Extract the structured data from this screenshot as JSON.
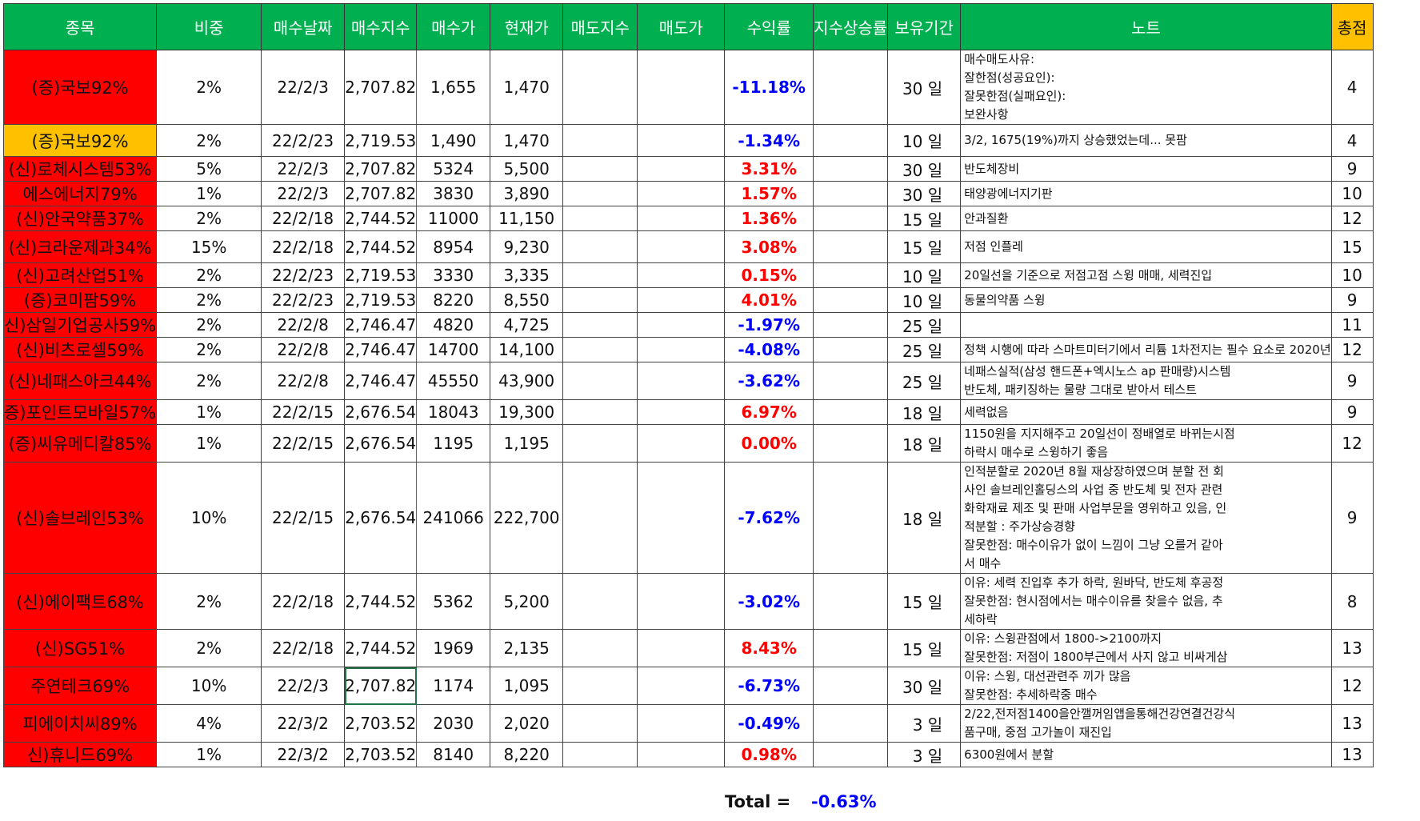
{
  "headers": {
    "name": "종목",
    "weight": "비중",
    "buy_date": "매수날짜",
    "buy_index": "매수지수",
    "buy_price": "매수가",
    "current_price": "현재가",
    "sell_index": "매도지수",
    "sell_price": "매도가",
    "return": "수익률",
    "index_rise": "지수상승률",
    "holding": "보유기간",
    "note": "노트",
    "score": "총점"
  },
  "rows": [
    {
      "name": "(증)국보92%",
      "weight": "2%",
      "buy_date": "22/2/3",
      "buy_index": "2,707.82",
      "buy_price": "1,655",
      "current_price": "1,470",
      "return": "-11.18%",
      "holding": "30 일",
      "note": [
        "매수매도사유:",
        "잘한점(성공요인):",
        "잘못한점(실패요인):",
        "보완사항"
      ],
      "score": "4"
    },
    {
      "name": "(증)국보92%",
      "weight": "2%",
      "buy_date": "22/2/23",
      "buy_index": "2,719.53",
      "buy_price": "1,490",
      "current_price": "1,470",
      "return": "-1.34%",
      "holding": "10 일",
      "note": [
        "3/2, 1675(19%)까지 상승했었는데... 못팜"
      ],
      "score": "4"
    },
    {
      "name": "(신)로체시스템53%",
      "weight": "5%",
      "buy_date": "22/2/3",
      "buy_index": "2,707.82",
      "buy_price": "5324",
      "current_price": "5,500",
      "return": "3.31%",
      "holding": "30 일",
      "note": [
        "반도체장비"
      ],
      "score": "9"
    },
    {
      "name": "에스에너지79%",
      "weight": "1%",
      "buy_date": "22/2/3",
      "buy_index": "2,707.82",
      "buy_price": "3830",
      "current_price": "3,890",
      "return": "1.57%",
      "holding": "30 일",
      "note": [
        "태양광에너지기판"
      ],
      "score": "10"
    },
    {
      "name": "(신)안국약품37%",
      "weight": "2%",
      "buy_date": "22/2/18",
      "buy_index": "2,744.52",
      "buy_price": "11000",
      "current_price": "11,150",
      "return": "1.36%",
      "holding": "15 일",
      "note": [
        "안과질환"
      ],
      "score": "12"
    },
    {
      "name": "(신)크라운제과34%",
      "weight": "15%",
      "buy_date": "22/2/18",
      "buy_index": "2,744.52",
      "buy_price": "8954",
      "current_price": "9,230",
      "return": "3.08%",
      "holding": "15 일",
      "note": [
        "저점 인플레"
      ],
      "score": "15"
    },
    {
      "name": "(신)고려산업51%",
      "weight": "2%",
      "buy_date": "22/2/23",
      "buy_index": "2,719.53",
      "buy_price": "3330",
      "current_price": "3,335",
      "return": "0.15%",
      "holding": "10 일",
      "note": [
        "20일선을 기준으로 저점고점 스윙 매매, 세력진입"
      ],
      "score": "10"
    },
    {
      "name": "(증)코미팜59%",
      "weight": "2%",
      "buy_date": "22/2/23",
      "buy_index": "2,719.53",
      "buy_price": "8220",
      "current_price": "8,550",
      "return": "4.01%",
      "holding": "10 일",
      "note": [
        "동물의약품 스윙"
      ],
      "score": "9"
    },
    {
      "name": "신)삼일기업공사59%",
      "weight": "2%",
      "buy_date": "22/2/8",
      "buy_index": "2,746.47",
      "buy_price": "4820",
      "current_price": "4,725",
      "return": "-1.97%",
      "holding": "25 일",
      "note": [],
      "score": "11"
    },
    {
      "name": "(신)비츠로셀59%",
      "weight": "2%",
      "buy_date": "22/2/8",
      "buy_index": "2,746.47",
      "buy_price": "14700",
      "current_price": "14,100",
      "return": "-4.08%",
      "holding": "25 일",
      "note": [
        "정책 시행에 따라 스마트미터기에서 리튬 1차전지는 필수 요소로 2020년"
      ],
      "score": "12"
    },
    {
      "name": "(신)네패스아크44%",
      "weight": "2%",
      "buy_date": "22/2/8",
      "buy_index": "2,746.47",
      "buy_price": "45550",
      "current_price": "43,900",
      "return": "-3.62%",
      "holding": "25 일",
      "note": [
        "네패스실적(삼성 핸드폰+엑시노스 ap 판매량)시스템",
        "반도체, 패키징하는 물량 그대로 받아서 테스트"
      ],
      "score": "9"
    },
    {
      "name": "증)포인트모바일57%",
      "weight": "1%",
      "buy_date": "22/2/15",
      "buy_index": "2,676.54",
      "buy_price": "18043",
      "current_price": "19,300",
      "return": "6.97%",
      "holding": "18 일",
      "note": [
        "세력없음"
      ],
      "score": "9"
    },
    {
      "name": "(증)씨유메디칼85%",
      "weight": "1%",
      "buy_date": "22/2/15",
      "buy_index": "2,676.54",
      "buy_price": "1195",
      "current_price": "1,195",
      "return": "0.00%",
      "holding": "18 일",
      "note": [
        "1150원을 지지해주고 20일선이 정배열로 바뀌는시점",
        "하락시 매수로 스윙하기 좋음"
      ],
      "score": "12"
    },
    {
      "name": "(신)솔브레인53%",
      "weight": "10%",
      "buy_date": "22/2/15",
      "buy_index": "2,676.54",
      "buy_price": "241066",
      "current_price": "222,700",
      "return": "-7.62%",
      "holding": "18 일",
      "note": [
        "인적분할로 2020년 8월 재상장하였으며 분할 전 회",
        "사인 솔브레인홀딩스의 사업 중 반도체 및 전자 관련",
        "화학재료 제조 및 판매 사업부문을 영위하고 있음, 인",
        "적분할 : 주가상승경향",
        "잘못한점: 매수이유가 없이 느낌이 그냥 오를거 같아",
        "서 매수"
      ],
      "score": "9"
    },
    {
      "name": "(신)에이팩트68%",
      "weight": "2%",
      "buy_date": "22/2/18",
      "buy_index": "2,744.52",
      "buy_price": "5362",
      "current_price": "5,200",
      "return": "-3.02%",
      "holding": "15 일",
      "note": [
        "이유: 세력 진입후 추가 하락, 원바닥, 반도체 후공정",
        "잘못한점: 현시점에서는 매수이유를 찾을수 없음, 추",
        "세하락"
      ],
      "score": "8"
    },
    {
      "name": "(신)SG51%",
      "weight": "2%",
      "buy_date": "22/2/18",
      "buy_index": "2,744.52",
      "buy_price": "1969",
      "current_price": "2,135",
      "return": "8.43%",
      "holding": "15 일",
      "note": [
        "이유: 스윙관점에서 1800->2100까지",
        "잘못한점: 저점이 1800부근에서 사지 않고 비싸게삼"
      ],
      "score": "13"
    },
    {
      "name": "주연테크69%",
      "weight": "10%",
      "buy_date": "22/2/3",
      "buy_index": "2,707.82",
      "buy_price": "1174",
      "current_price": "1,095",
      "return": "-6.73%",
      "holding": "30 일",
      "note": [
        "이유: 스윙, 대선관련주 끼가 많음",
        "잘못한점: 추세하락중 매수"
      ],
      "score": "12"
    },
    {
      "name": "피에이치씨89%",
      "weight": "4%",
      "buy_date": "22/3/2",
      "buy_index": "2,703.52",
      "buy_price": "2030",
      "current_price": "2,020",
      "return": "-0.49%",
      "holding": "3 일",
      "note": [
        "2/22,전저점1400을안깰꺼임앱을통해건강연결건강식",
        "품구매, 중점 고가놀이 재진입"
      ],
      "score": "13"
    },
    {
      "name": "신)휴니드69%",
      "weight": "1%",
      "buy_date": "22/3/2",
      "buy_index": "2,703.52",
      "buy_price": "8140",
      "current_price": "8,220",
      "return": "0.98%",
      "holding": "3 일",
      "note": [
        "6300원에서 분할"
      ],
      "score": "13"
    }
  ],
  "total": {
    "label": "Total =",
    "value": "-0.63%"
  }
}
